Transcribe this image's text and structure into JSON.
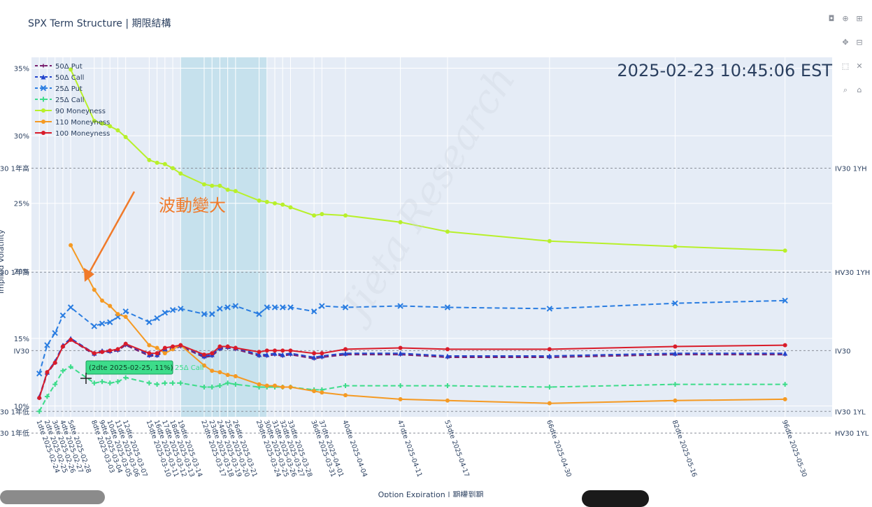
{
  "title": "SPX Term Structure | 期限結構",
  "timestamp": "2025-02-23 10:45:06 EST",
  "annotation": "波動變大",
  "watermark": "Jieta Research",
  "tooltip": "(2dte 2025-02-25, 11%)",
  "tooltip_series": "25Δ Call",
  "x_axis_title": "Option Expiration | 期權到期",
  "y_axis_title": "Implied Volatility",
  "chart_data": {
    "type": "line",
    "x": [
      1,
      2,
      3,
      4,
      5,
      8,
      9,
      10,
      11,
      12,
      15,
      16,
      17,
      18,
      19,
      22,
      23,
      24,
      25,
      26,
      29,
      30,
      31,
      32,
      33,
      36,
      37,
      40,
      47,
      53,
      66,
      82,
      96
    ],
    "x_labels": [
      "1dte 2025-02-24",
      "2dte 2025-02-25",
      "3dte 2025-02-26",
      "4dte 2025-02-27",
      "5dte 2025-02-28",
      "8dte 2025-03-03",
      "9dte 2025-03-04",
      "10dte 2025-03-05",
      "11dte 2025-03-06",
      "12dte 2025-03-07",
      "15dte 2025-03-10",
      "16dte 2025-03-11",
      "17dte 2025-03-12",
      "18dte 2025-03-13",
      "19dte 2025-03-14",
      "22dte 2025-03-17",
      "23dte 2025-03-18",
      "24dte 2025-03-19",
      "25dte 2025-03-20",
      "26dte 2025-03-21",
      "29dte 2025-03-24",
      "30dte 2025-03-25",
      "31dte 2025-03-26",
      "32dte 2025-03-27",
      "33dte 2025-03-28",
      "36dte 2025-03-31",
      "37dte 2025-04-01",
      "40dte 2025-04-04",
      "47dte 2025-04-11",
      "53dte 2025-04-17",
      "66dte 2025-04-30",
      "82dte 2025-05-16",
      "96dte 2025-05-30"
    ],
    "y_ticks": [
      "10%",
      "15%",
      "20%",
      "25%",
      "30%",
      "35%"
    ],
    "ylim": [
      9.2,
      35.8
    ],
    "shaded_region": {
      "x_start": 19,
      "x_end": 30
    },
    "series": [
      {
        "name": "50Δ Put",
        "color": "#7a1f6e",
        "dash": "dash",
        "marker": "star",
        "values": [
          10.6,
          12.4,
          13.2,
          14.4,
          14.9,
          13.8,
          14.0,
          14.0,
          14.1,
          14.5,
          13.7,
          13.7,
          14.1,
          14.2,
          14.4,
          13.6,
          13.7,
          14.2,
          14.3,
          14.2,
          13.7,
          13.7,
          13.8,
          13.7,
          13.8,
          13.5,
          13.6,
          13.8,
          13.8,
          13.6,
          13.6,
          13.8,
          13.8
        ]
      },
      {
        "name": "50Δ Call",
        "color": "#2244cc",
        "dash": "dash",
        "marker": "triangle",
        "values": [
          10.7,
          12.5,
          13.3,
          14.5,
          15.0,
          13.9,
          14.1,
          14.1,
          14.2,
          14.6,
          13.8,
          13.8,
          14.2,
          14.3,
          14.5,
          13.7,
          13.8,
          14.3,
          14.4,
          14.3,
          13.8,
          13.8,
          13.9,
          13.8,
          13.9,
          13.6,
          13.7,
          13.9,
          13.9,
          13.7,
          13.7,
          13.9,
          13.9
        ]
      },
      {
        "name": "25Δ Put",
        "color": "#2a7de1",
        "dash": "dash",
        "marker": "x",
        "values": [
          12.4,
          14.5,
          15.4,
          16.7,
          17.3,
          15.9,
          16.1,
          16.2,
          16.6,
          17.0,
          16.2,
          16.5,
          16.9,
          17.1,
          17.2,
          16.8,
          16.8,
          17.2,
          17.3,
          17.4,
          16.8,
          17.3,
          17.3,
          17.3,
          17.3,
          17.0,
          17.4,
          17.3,
          17.4,
          17.3,
          17.2,
          17.6,
          17.8
        ]
      },
      {
        "name": "25Δ Call",
        "color": "#3ddc8a",
        "dash": "dash",
        "marker": "plus",
        "values": [
          9.6,
          10.7,
          11.6,
          12.6,
          12.9,
          11.7,
          11.8,
          11.7,
          11.8,
          12.1,
          11.7,
          11.6,
          11.7,
          11.7,
          11.7,
          11.4,
          11.4,
          11.5,
          11.7,
          11.6,
          11.4,
          11.4,
          11.4,
          11.4,
          11.4,
          11.2,
          11.2,
          11.5,
          11.5,
          11.5,
          11.4,
          11.6,
          11.6
        ]
      },
      {
        "name": "90 Moneyness",
        "color": "#b8f02a",
        "dash": "solid",
        "marker": "circle",
        "values": [
          null,
          null,
          null,
          null,
          34.9,
          31.1,
          30.9,
          30.7,
          30.4,
          29.9,
          28.2,
          28.0,
          27.9,
          27.6,
          27.2,
          26.4,
          26.3,
          26.3,
          26.0,
          25.9,
          25.2,
          25.1,
          25.0,
          24.9,
          24.7,
          24.1,
          24.2,
          24.1,
          23.6,
          22.9,
          22.2,
          21.8,
          21.5
        ]
      },
      {
        "name": "110 Moneyness",
        "color": "#f59a23",
        "dash": "solid",
        "marker": "circle",
        "values": [
          null,
          null,
          null,
          null,
          21.9,
          18.6,
          17.8,
          17.4,
          16.8,
          16.6,
          14.5,
          14.3,
          13.9,
          14.2,
          14.5,
          13.0,
          12.6,
          12.5,
          12.3,
          12.2,
          11.6,
          11.5,
          11.5,
          11.4,
          11.4,
          11.1,
          11.0,
          10.8,
          10.5,
          10.4,
          10.2,
          10.4,
          10.5
        ]
      },
      {
        "name": "100 Moneyness",
        "color": "#d91c2a",
        "dash": "solid",
        "marker": "circle",
        "values": [
          10.6,
          12.5,
          13.2,
          14.4,
          14.9,
          13.9,
          14.0,
          14.1,
          14.2,
          14.6,
          13.9,
          13.9,
          14.3,
          14.4,
          14.5,
          13.8,
          13.9,
          14.4,
          14.4,
          14.3,
          14.0,
          14.1,
          14.1,
          14.1,
          14.1,
          13.9,
          13.9,
          14.2,
          14.3,
          14.2,
          14.2,
          14.4,
          14.5
        ]
      }
    ],
    "reference_lines": [
      {
        "label_left": "IV30 1年高",
        "label_right": "IV30 1YH",
        "value": 27.6
      },
      {
        "label_left": "HV30 1年高",
        "label_right": "HV30 1YH",
        "value": 19.9
      },
      {
        "label_left": "IV30",
        "label_right": "IV30",
        "value": 14.1
      },
      {
        "label_left": "IV30 1年低",
        "label_right": "IV30 1YL",
        "value": 9.6
      },
      {
        "label_left": "HV30 1年低",
        "label_right": "HV30 1YL",
        "value": 8.0
      }
    ],
    "legend_position": "top-left",
    "grid": true
  },
  "colors": {
    "plot_bg": "#e5ecf6",
    "shade": "#add8e6",
    "annotation": "#f07a2a",
    "tooltip_bg": "#3ddc8a"
  },
  "toolbar_icons": [
    "camera-icon",
    "zoom-icon",
    "zoom-in-icon",
    "pan-icon",
    "zoom-out-icon",
    "box-select-icon",
    "autoscale-icon",
    "lasso-icon",
    "home-icon"
  ]
}
